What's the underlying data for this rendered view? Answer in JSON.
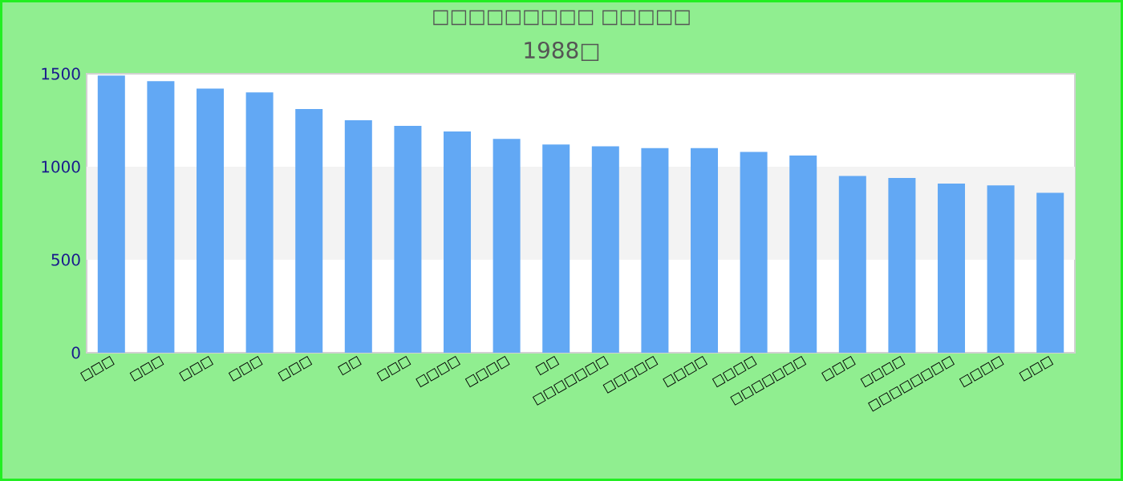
{
  "chart_data": {
    "type": "bar",
    "title": "□□□□□□□□□ □□□□□",
    "subtitle": "1988□",
    "categories": [
      "□□□",
      "□□□",
      "□□□",
      "□□□",
      "□□□",
      "□□",
      "□□□",
      "□□□□",
      "□□□□",
      "□□",
      "□□□□□□□",
      "□□□□□",
      "□□□□",
      "□□□□",
      "□□□□□□□",
      "□□□",
      "□□□□",
      "□□□□□□□□",
      "□□□□",
      "□□□"
    ],
    "values": [
      1490,
      1460,
      1420,
      1400,
      1310,
      1250,
      1220,
      1190,
      1150,
      1120,
      1110,
      1100,
      1100,
      1080,
      1060,
      950,
      940,
      910,
      900,
      860
    ],
    "color": "#62a8f4",
    "ylim": [
      0,
      1500
    ],
    "yticks": [
      0,
      500,
      1000,
      1500
    ],
    "bands": [
      {
        "axis": "y",
        "from": 500,
        "to": 1000,
        "color": "#f3f3f3"
      }
    ]
  }
}
